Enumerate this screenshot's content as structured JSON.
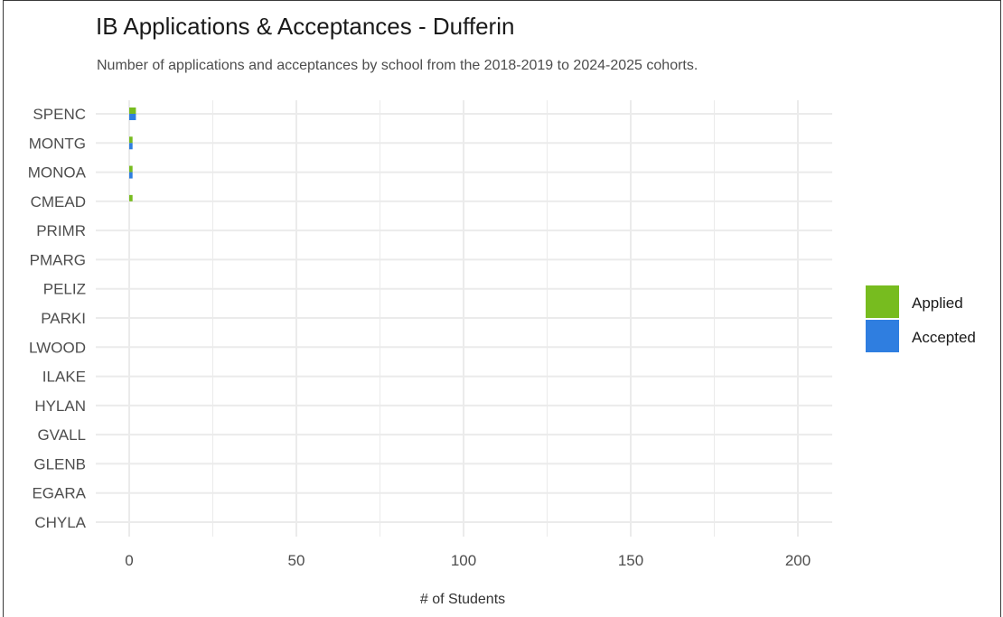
{
  "title": "IB Applications & Acceptances - Dufferin",
  "subtitle": "Number of applications and acceptances by school from the 2018-2019 to 2024-2025 cohorts.",
  "colors": {
    "applied": "#77bc1f",
    "accepted": "#2f7ee0",
    "grid": "#ebebeb"
  },
  "chart_data": {
    "type": "bar",
    "orientation": "horizontal",
    "title": "IB Applications & Acceptances - Dufferin",
    "subtitle": "Number of applications and acceptances by school from the 2018-2019 to 2024-2025 cohorts.",
    "xlabel": "# of Students",
    "ylabel": "",
    "xlim": [
      0,
      210
    ],
    "xticks": [
      0,
      50,
      100,
      150,
      200
    ],
    "grid": true,
    "legend_position": "right",
    "categories": [
      "SPENC",
      "MONTG",
      "MONOA",
      "CMEAD",
      "PRIMR",
      "PMARG",
      "PELIZ",
      "PARKI",
      "LWOOD",
      "ILAKE",
      "HYLAN",
      "GVALL",
      "GLENB",
      "EGARA",
      "CHYLA"
    ],
    "series": [
      {
        "name": "Applied",
        "color": "#77bc1f",
        "values": [
          2,
          1,
          1,
          1,
          0,
          0,
          0,
          0,
          0,
          0,
          0,
          0,
          0,
          0,
          0
        ]
      },
      {
        "name": "Accepted",
        "color": "#2f7ee0",
        "values": [
          2,
          1,
          1,
          0,
          0,
          0,
          0,
          0,
          0,
          0,
          0,
          0,
          0,
          0,
          0
        ]
      }
    ]
  }
}
